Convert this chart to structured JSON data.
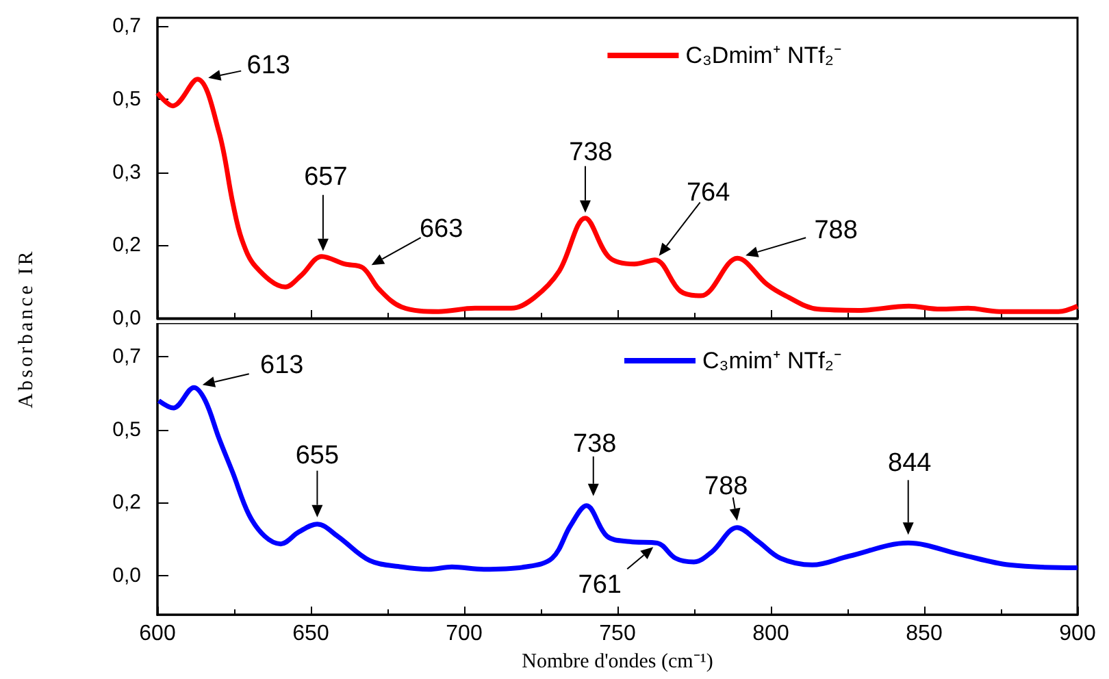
{
  "chart_data": [
    {
      "type": "line",
      "ylabel": "Absorbance IR",
      "xlim": [
        600,
        900
      ],
      "xticks": [
        600,
        650,
        700,
        750,
        800,
        850,
        900
      ],
      "ylim": [
        0,
        0.72
      ],
      "yticks": [
        {
          "value": 0,
          "label": "0,0"
        },
        {
          "value": 0.175,
          "label": "0,2"
        },
        {
          "value": 0.35,
          "label": "0,3"
        },
        {
          "value": 0.525,
          "label": "0,5"
        },
        {
          "value": 0.7,
          "label": "0,7"
        }
      ],
      "tick_labels": "y",
      "legend": "top right",
      "marker": "none",
      "grid": false,
      "series": [
        {
          "name": "C₃Dmim⁺ NTf₂⁻",
          "color": "#ff0000",
          "x": [
            600,
            605,
            613,
            620,
            624.6,
            627.5,
            632,
            641.7,
            646.9,
            653.6,
            661,
            667,
            672.2,
            679.6,
            691.6,
            703.5,
            715.4,
            722.8,
            731,
            739.5,
            747.3,
            755.5,
            762.2,
            770.5,
            777.2,
            789.1,
            798.8,
            804.8,
            815.2,
            828.6,
            845,
            855.3,
            864.3,
            874.5,
            893.8,
            900
          ],
          "values": [
            0.54,
            0.509,
            0.573,
            0.448,
            0.275,
            0.189,
            0.124,
            0.075,
            0.103,
            0.148,
            0.13,
            0.121,
            0.07,
            0.027,
            0.016,
            0.024,
            0.024,
            0.049,
            0.113,
            0.24,
            0.146,
            0.13,
            0.14,
            0.065,
            0.054,
            0.144,
            0.081,
            0.054,
            0.022,
            0.019,
            0.029,
            0.022,
            0.024,
            0.016,
            0.016,
            0.029
          ]
        }
      ],
      "annotations": [
        {
          "text": "613",
          "x": 613,
          "y": 0.573
        },
        {
          "text": "657",
          "x": 654,
          "y": 0.148
        },
        {
          "text": "663",
          "x": 668,
          "y": 0.121
        },
        {
          "text": "738",
          "x": 739.5,
          "y": 0.24
        },
        {
          "text": "764",
          "x": 762.2,
          "y": 0.14
        },
        {
          "text": "788",
          "x": 789.1,
          "y": 0.144
        }
      ]
    },
    {
      "type": "line",
      "xlabel": "Nombre d'ondes (cm⁻¹)",
      "xlim": [
        600,
        900
      ],
      "xticks": [
        600,
        650,
        700,
        750,
        800,
        850,
        900
      ],
      "ylim": [
        -0.135,
        0.865
      ],
      "yticks": [
        {
          "value": 0,
          "label": "0,0"
        },
        {
          "value": 0.25,
          "label": "0,2"
        },
        {
          "value": 0.5,
          "label": "0,5"
        },
        {
          "value": 0.75,
          "label": "0,7"
        }
      ],
      "legend": "top right",
      "marker": "none",
      "grid": false,
      "series": [
        {
          "name": "C₃mim⁺ NTf₂⁻",
          "color": "#0000ff",
          "x": [
            600.4,
            605.2,
            611.9,
            615.6,
            620,
            624.6,
            629.8,
            635,
            640.2,
            646.1,
            652.1,
            658.8,
            669.2,
            679.6,
            688.5,
            696,
            706.4,
            719.8,
            728.7,
            734.7,
            739.9,
            746.6,
            754,
            763,
            768.9,
            774.9,
            780.8,
            789,
            795.7,
            803.1,
            813.5,
            825.5,
            844.8,
            861.4,
            877.7,
            900
          ],
          "values": [
            0.599,
            0.574,
            0.644,
            0.599,
            0.472,
            0.351,
            0.209,
            0.134,
            0.108,
            0.149,
            0.176,
            0.134,
            0.051,
            0.029,
            0.021,
            0.029,
            0.021,
            0.029,
            0.059,
            0.171,
            0.239,
            0.134,
            0.116,
            0.111,
            0.059,
            0.046,
            0.081,
            0.164,
            0.118,
            0.059,
            0.036,
            0.066,
            0.111,
            0.073,
            0.036,
            0.026
          ]
        }
      ],
      "annotations": [
        {
          "text": "613",
          "x": 612,
          "y": 0.644
        },
        {
          "text": "655",
          "x": 652.1,
          "y": 0.176
        },
        {
          "text": "738",
          "x": 739.9,
          "y": 0.239
        },
        {
          "text": "761",
          "x": 763,
          "y": 0.111
        },
        {
          "text": "788",
          "x": 789,
          "y": 0.164
        },
        {
          "text": "844",
          "x": 844.8,
          "y": 0.111
        }
      ]
    }
  ]
}
